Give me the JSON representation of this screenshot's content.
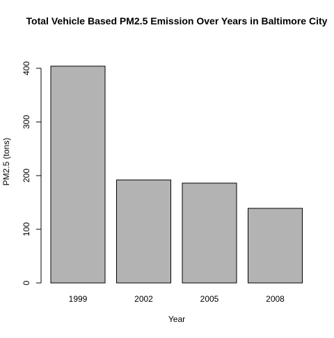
{
  "chart_data": {
    "type": "bar",
    "title": "Total Vehicle Based PM2.5 Emission Over Years in Baltimore City",
    "xlabel": "Year",
    "ylabel": "PM2.5 (tons)",
    "categories": [
      "1999",
      "2002",
      "2005",
      "2008"
    ],
    "values": [
      404,
      192,
      186,
      139
    ],
    "ylim": [
      0,
      400
    ],
    "yticks": [
      0,
      100,
      200,
      300,
      400
    ],
    "ytick_labels": [
      "0",
      "100",
      "200",
      "300",
      "400"
    ],
    "bar_color": "#b3b3b3",
    "bar_edge_color": "#000000",
    "grid": false
  }
}
